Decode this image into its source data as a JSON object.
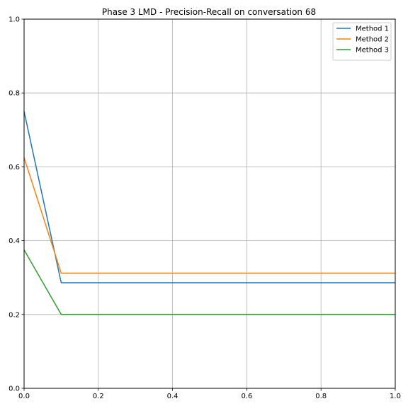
{
  "chart_data": {
    "type": "line",
    "title": "Phase 3 LMD - Precision-Recall on conversation 68",
    "xlabel": "",
    "ylabel": "",
    "xlim": [
      0,
      1
    ],
    "ylim": [
      0,
      1
    ],
    "xticks": [
      "0.0",
      "0.2",
      "0.4",
      "0.6",
      "0.8",
      "1.0"
    ],
    "yticks": [
      "0.0",
      "0.2",
      "0.4",
      "0.6",
      "0.8",
      "1.0"
    ],
    "grid": true,
    "legend_position": "top-right",
    "series": [
      {
        "name": "Method 1",
        "color": "#1f77b4",
        "x": [
          0.0,
          0.1,
          0.2,
          0.3,
          0.4,
          0.5,
          0.6,
          0.7,
          0.8,
          0.9,
          1.0
        ],
        "y": [
          0.75,
          0.286,
          0.286,
          0.286,
          0.286,
          0.286,
          0.286,
          0.286,
          0.286,
          0.286,
          0.286
        ]
      },
      {
        "name": "Method 2",
        "color": "#ff7f0e",
        "x": [
          0.0,
          0.1,
          0.2,
          0.3,
          0.4,
          0.5,
          0.6,
          0.7,
          0.8,
          0.9,
          1.0
        ],
        "y": [
          0.625,
          0.312,
          0.312,
          0.312,
          0.312,
          0.312,
          0.312,
          0.312,
          0.312,
          0.312,
          0.312
        ]
      },
      {
        "name": "Method 3",
        "color": "#2ca02c",
        "x": [
          0.0,
          0.1,
          0.2,
          0.3,
          0.4,
          0.5,
          0.6,
          0.7,
          0.8,
          0.9,
          1.0
        ],
        "y": [
          0.375,
          0.2,
          0.2,
          0.2,
          0.2,
          0.2,
          0.2,
          0.2,
          0.2,
          0.2,
          0.2
        ]
      }
    ]
  }
}
